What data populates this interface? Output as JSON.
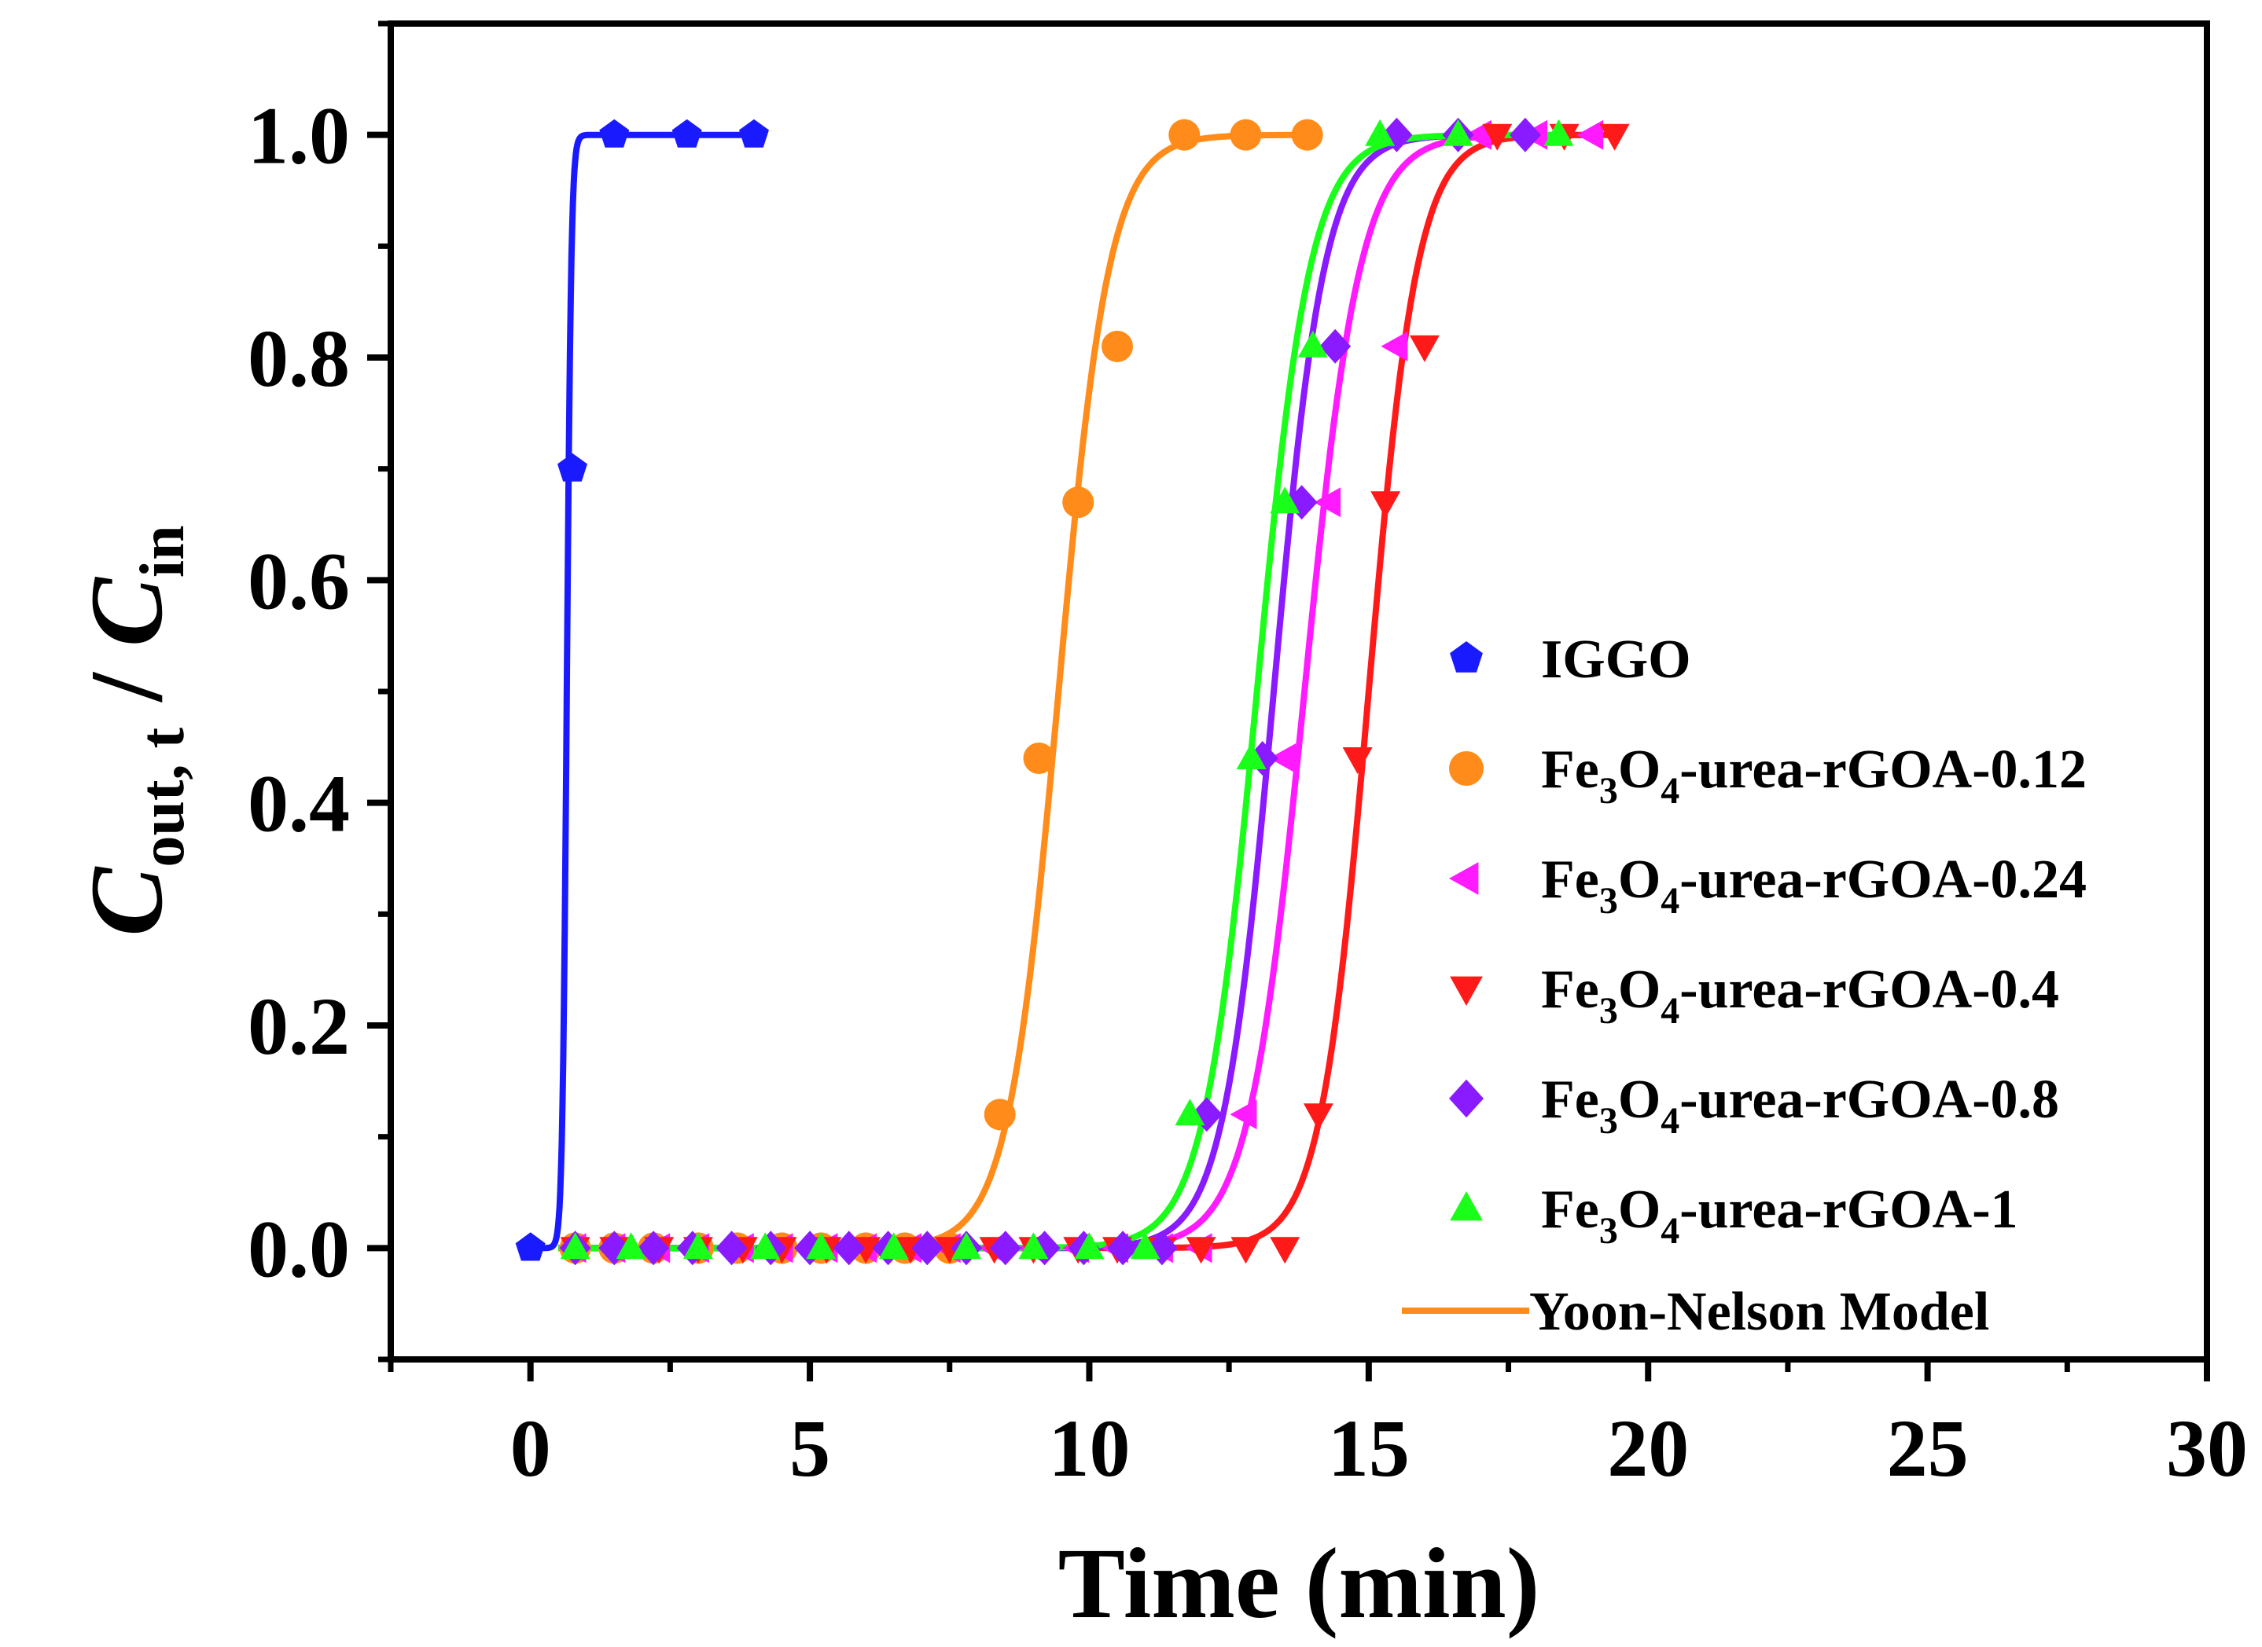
{
  "chart_data": {
    "type": "scatter",
    "title": "",
    "xlabel": "Time (min)",
    "ylabel": {
      "main1": "C",
      "sub1": "out, t",
      "slash": " / ",
      "main2": "C",
      "sub2": "in"
    },
    "xlim": [
      -2.5,
      30
    ],
    "ylim": [
      -0.1,
      1.1
    ],
    "x_ticks": [
      0,
      5,
      10,
      15,
      20,
      25,
      30
    ],
    "x_tick_labels": [
      "0",
      "5",
      "10",
      "15",
      "20",
      "25",
      "30"
    ],
    "y_ticks": [
      0.0,
      0.2,
      0.4,
      0.6,
      0.8,
      1.0
    ],
    "y_tick_labels": [
      "0.0",
      "0.2",
      "0.4",
      "0.6",
      "0.8",
      "1.0"
    ],
    "grid": false,
    "legend_position": "right",
    "series": [
      {
        "name": "IGGO",
        "label_parts": [
          {
            "t": "IGGO"
          }
        ],
        "marker": "pentagon",
        "color": "#1a1aff",
        "x": [
          0,
          0.75,
          1.5,
          2.8,
          4.0
        ],
        "y": [
          0.0,
          0.7,
          1.0,
          1.0,
          1.0
        ],
        "fit": {
          "k": 25,
          "tau": 0.65,
          "x_start": 0,
          "x_end": 4.0
        }
      },
      {
        "name": "Fe3O4-urea-rGOA-0.12",
        "label_parts": [
          {
            "t": "Fe"
          },
          {
            "t": "3",
            "sub": true
          },
          {
            "t": "O"
          },
          {
            "t": "4",
            "sub": true
          },
          {
            "t": "-urea-rGOA-0.12"
          }
        ],
        "marker": "circle",
        "color": "#ff8c1a",
        "x": [
          0.8,
          1.5,
          2.2,
          3.0,
          3.7,
          4.5,
          5.2,
          6.0,
          6.7,
          7.5,
          8.4,
          9.1,
          9.8,
          10.5,
          11.7,
          12.8,
          13.9
        ],
        "y": [
          0,
          0,
          0,
          0,
          0,
          0,
          0,
          0,
          0,
          0,
          0.12,
          0.44,
          0.67,
          0.81,
          1.0,
          1.0,
          1.0
        ],
        "fit": {
          "k": 2.2,
          "tau": 9.45,
          "x_start": 0.5,
          "x_end": 13.9
        }
      },
      {
        "name": "Fe3O4-urea-rGOA-0.24",
        "label_parts": [
          {
            "t": "Fe"
          },
          {
            "t": "3",
            "sub": true
          },
          {
            "t": "O"
          },
          {
            "t": "4",
            "sub": true
          },
          {
            "t": "-urea-rGOA-0.24"
          }
        ],
        "marker": "triangle-left",
        "color": "#ff1aff",
        "x": [
          0.8,
          1.5,
          2.3,
          3.0,
          3.8,
          4.5,
          5.3,
          6.0,
          6.8,
          7.5,
          8.3,
          9.0,
          9.8,
          10.5,
          11.3,
          12.0,
          12.8,
          13.5,
          14.3,
          15.5,
          17.0,
          18.0,
          19.0
        ],
        "y": [
          0,
          0,
          0,
          0,
          0,
          0,
          0,
          0,
          0,
          0,
          0,
          0,
          0,
          0,
          0,
          0,
          0.12,
          0.44,
          0.67,
          0.81,
          1.0,
          1.0,
          1.0
        ],
        "fit": {
          "k": 2.0,
          "tau": 13.85,
          "x_start": 0.5,
          "x_end": 19.0
        }
      },
      {
        "name": "Fe3O4-urea-rGOA-0.4",
        "label_parts": [
          {
            "t": "Fe"
          },
          {
            "t": "3",
            "sub": true
          },
          {
            "t": "O"
          },
          {
            "t": "4",
            "sub": true
          },
          {
            "t": "-urea-rGOA-0.4"
          }
        ],
        "marker": "triangle-down",
        "color": "#ff1a1a",
        "x": [
          0.8,
          1.5,
          2.3,
          3.0,
          3.8,
          4.5,
          5.3,
          6.0,
          6.8,
          7.5,
          8.3,
          9.0,
          9.8,
          10.5,
          11.3,
          12.0,
          12.8,
          13.5,
          14.1,
          14.8,
          15.3,
          16.0,
          17.3,
          18.5,
          19.4
        ],
        "y": [
          0,
          0,
          0,
          0,
          0,
          0,
          0,
          0,
          0,
          0,
          0,
          0,
          0,
          0,
          0,
          0,
          0,
          0,
          0.12,
          0.44,
          0.67,
          0.81,
          1.0,
          1.0,
          1.0
        ],
        "fit": {
          "k": 2.3,
          "tau": 15.0,
          "x_start": 0.5,
          "x_end": 19.4
        }
      },
      {
        "name": "Fe3O4-urea-rGOA-0.8",
        "label_parts": [
          {
            "t": "Fe"
          },
          {
            "t": "3",
            "sub": true
          },
          {
            "t": "O"
          },
          {
            "t": "4",
            "sub": true
          },
          {
            "t": "-urea-rGOA-0.8"
          }
        ],
        "marker": "diamond",
        "color": "#8a1aff",
        "x": [
          0.8,
          1.5,
          2.2,
          2.9,
          3.6,
          4.3,
          5.0,
          5.7,
          6.4,
          7.1,
          7.8,
          8.5,
          9.2,
          9.9,
          10.6,
          11.3,
          12.1,
          13.1,
          13.8,
          14.4,
          15.5,
          16.6,
          17.8
        ],
        "y": [
          0,
          0,
          0,
          0,
          0,
          0,
          0,
          0,
          0,
          0,
          0,
          0,
          0,
          0,
          0,
          0,
          0.12,
          0.44,
          0.67,
          0.81,
          1.0,
          1.0,
          1.0
        ],
        "fit": {
          "k": 2.2,
          "tau": 13.3,
          "x_start": 0.5,
          "x_end": 17.8
        }
      },
      {
        "name": "Fe3O4-urea-rGOA-1",
        "label_parts": [
          {
            "t": "Fe"
          },
          {
            "t": "3",
            "sub": true
          },
          {
            "t": "O"
          },
          {
            "t": "4",
            "sub": true
          },
          {
            "t": "-urea-rGOA-1"
          }
        ],
        "marker": "triangle-up",
        "color": "#1aff1a",
        "x": [
          0.8,
          1.8,
          3.0,
          4.2,
          5.2,
          6.5,
          7.8,
          9.0,
          10.0,
          11.0,
          11.8,
          12.9,
          13.5,
          14.0,
          15.2,
          16.6,
          18.4
        ],
        "y": [
          0,
          0,
          0,
          0,
          0,
          0,
          0,
          0,
          0,
          0,
          0.12,
          0.44,
          0.67,
          0.81,
          1.0,
          1.0,
          1.0
        ],
        "fit": {
          "k": 2.1,
          "tau": 13.0,
          "x_start": 0.5,
          "x_end": 18.4
        }
      }
    ],
    "model_legend": {
      "name": "Yoon-Nelson Model",
      "color": "#ff8c1a"
    }
  }
}
